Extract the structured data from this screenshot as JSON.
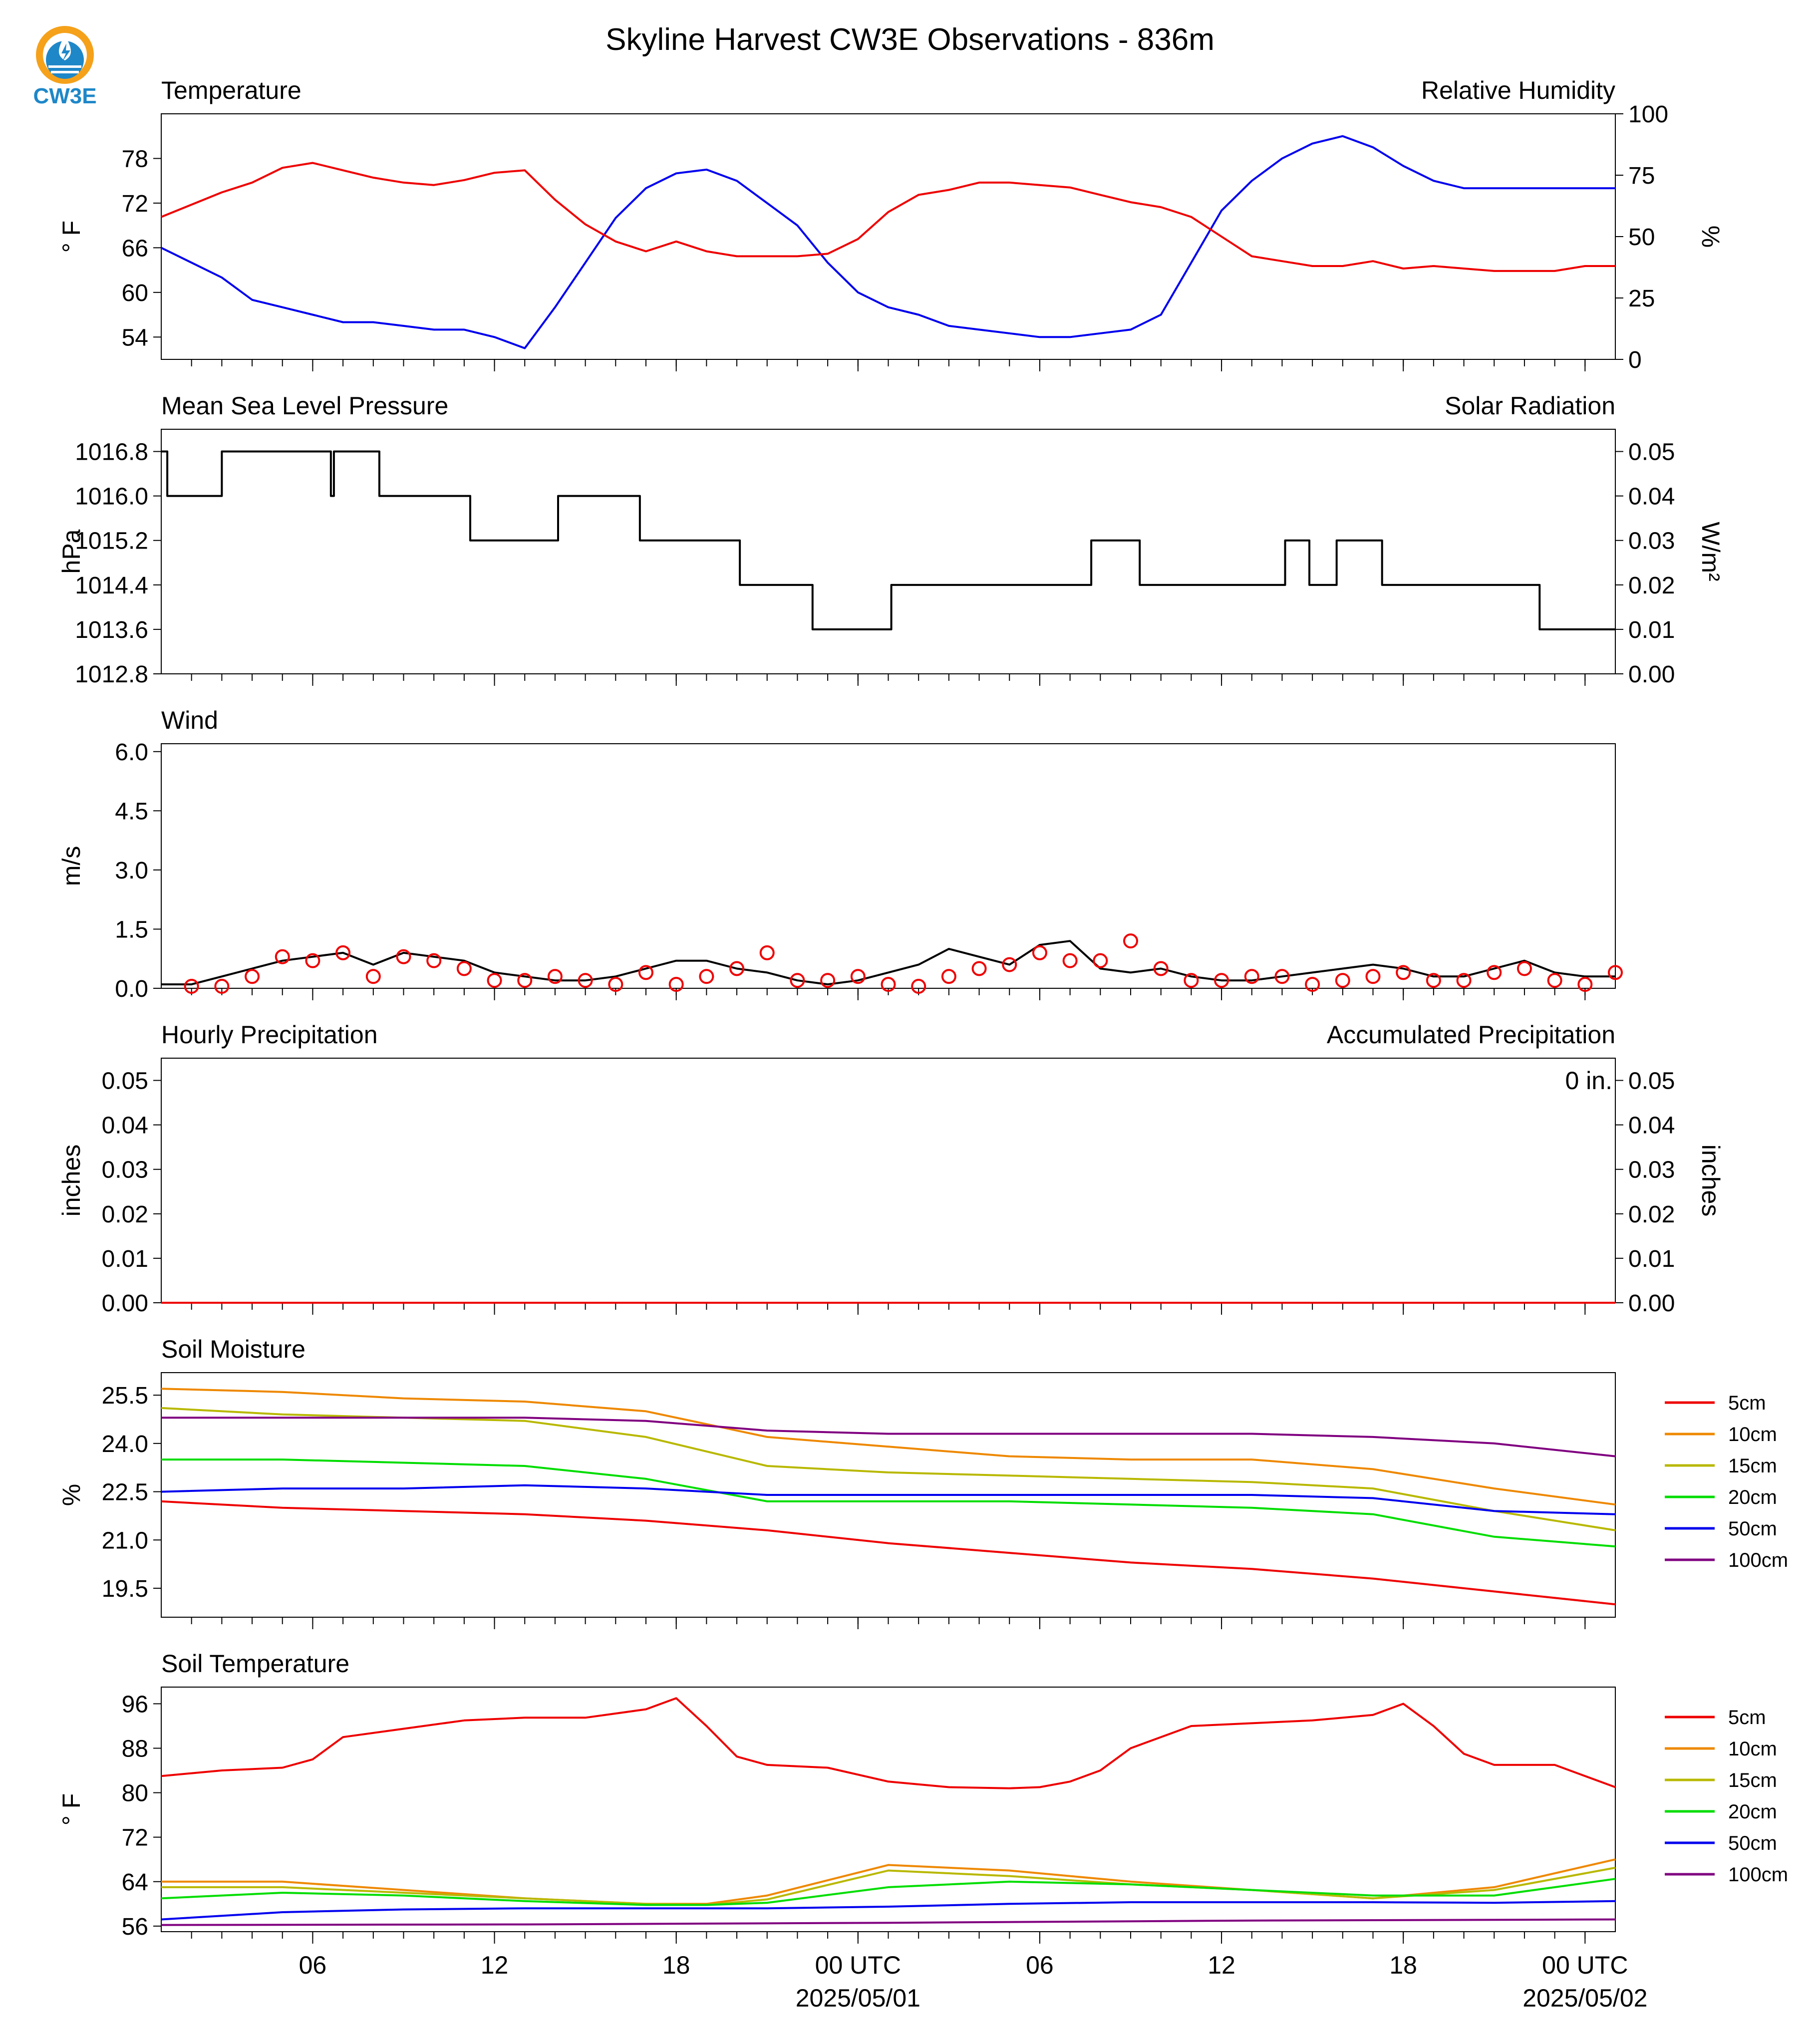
{
  "title": "Skyline Harvest CW3E Observations - 836m",
  "logo": {
    "text": "CW3E",
    "colors": {
      "ring": "#f5a11a",
      "drop": "#1e87c8",
      "text": "#1e87c8"
    }
  },
  "colors": {
    "blue": "#0000ee",
    "red": "#ee0000",
    "green": "#008800",
    "black": "#000000"
  },
  "x_axis": {
    "domain_hours": [
      0,
      48
    ],
    "ticks": [
      {
        "hour": 5,
        "label": "06",
        "sub": ""
      },
      {
        "hour": 11,
        "label": "12",
        "sub": ""
      },
      {
        "hour": 17,
        "label": "18",
        "sub": ""
      },
      {
        "hour": 23,
        "label": "00 UTC",
        "sub": "2025/05/01"
      },
      {
        "hour": 29,
        "label": "06",
        "sub": ""
      },
      {
        "hour": 35,
        "label": "12",
        "sub": ""
      },
      {
        "hour": 41,
        "label": "18",
        "sub": ""
      },
      {
        "hour": 47,
        "label": "00 UTC",
        "sub": "2025/05/02"
      }
    ]
  },
  "panels": {
    "temp_rh": {
      "left_title": "Temperature",
      "right_title": "Relative Humidity",
      "left_unit": "° F",
      "right_unit": "%",
      "left_ylim": [
        51,
        84
      ],
      "left_ticks": [
        "54",
        "60",
        "66",
        "72",
        "78"
      ],
      "right_ylim": [
        0,
        100
      ],
      "right_ticks": [
        "0",
        "25",
        "50",
        "75",
        "100"
      ]
    },
    "pressure": {
      "left_title": "Mean Sea Level Pressure",
      "right_title": "Solar Radiation",
      "left_unit": "hPa",
      "right_unit": "W/m²",
      "left_ylim": [
        1012.8,
        1017.2
      ],
      "left_ticks": [
        "1012.8",
        "1013.6",
        "1014.4",
        "1015.2",
        "1016.0",
        "1016.8"
      ],
      "right_ylim": [
        0,
        0.055
      ],
      "right_ticks": [
        "0.00",
        "0.01",
        "0.02",
        "0.03",
        "0.04",
        "0.05"
      ]
    },
    "wind": {
      "left_title": "Wind",
      "left_unit": "m/s",
      "left_ylim": [
        0,
        6.2
      ],
      "left_ticks": [
        "0.0",
        "1.5",
        "3.0",
        "4.5",
        "6.0"
      ]
    },
    "precip": {
      "left_title": "Hourly Precipitation",
      "right_title": "Accumulated Precipitation",
      "left_unit": "inches",
      "right_unit": "inches",
      "accum_label": "0 in.",
      "left_ylim": [
        0,
        0.055
      ],
      "left_ticks": [
        "0.00",
        "0.01",
        "0.02",
        "0.03",
        "0.04",
        "0.05"
      ],
      "right_ticks": [
        "0.00",
        "0.01",
        "0.02",
        "0.03",
        "0.04",
        "0.05"
      ]
    },
    "soil_moisture": {
      "left_title": "Soil Moisture",
      "left_unit": "%",
      "left_ylim": [
        18.6,
        26.2
      ],
      "left_ticks": [
        "19.5",
        "21.0",
        "22.5",
        "24.0",
        "25.5"
      ]
    },
    "soil_temp": {
      "left_title": "Soil Temperature",
      "left_unit": "° F",
      "left_ylim": [
        55,
        99
      ],
      "left_ticks": [
        "56",
        "64",
        "72",
        "80",
        "88",
        "96"
      ]
    }
  },
  "legend": [
    "5cm",
    "10cm",
    "15cm",
    "20cm",
    "50cm",
    "100cm"
  ],
  "chart_data": [
    {
      "type": "line",
      "title": "Temperature / Relative Humidity",
      "series": [
        {
          "name": "Temperature",
          "axis": "left",
          "color": "#0000ee",
          "x": [
            0,
            1,
            2,
            3,
            4,
            5,
            6,
            7,
            8,
            9,
            10,
            11,
            12,
            13,
            14,
            15,
            16,
            17,
            18,
            19,
            20,
            21,
            22,
            23,
            24,
            25,
            26,
            27,
            28,
            29,
            30,
            31,
            32,
            33,
            34,
            35,
            36,
            37,
            38,
            39,
            40,
            41,
            42,
            43,
            44,
            45,
            46,
            47,
            48
          ],
          "y": [
            66,
            64,
            62,
            59,
            58,
            57,
            56,
            56,
            55.5,
            55,
            55,
            54,
            52.5,
            58,
            64,
            70,
            74,
            76,
            76.5,
            75,
            72,
            69,
            64,
            60,
            58,
            57,
            55.5,
            55,
            54.5,
            54,
            54,
            54.5,
            55,
            57,
            64,
            71,
            75,
            78,
            80,
            81,
            79.5,
            77,
            75,
            74,
            74,
            74,
            74,
            74,
            74
          ]
        },
        {
          "name": "Relative Humidity",
          "axis": "right",
          "color": "#ee0000",
          "x": [
            0,
            1,
            2,
            3,
            4,
            5,
            6,
            7,
            8,
            9,
            10,
            11,
            12,
            13,
            14,
            15,
            16,
            17,
            18,
            19,
            20,
            21,
            22,
            23,
            24,
            25,
            26,
            27,
            28,
            29,
            30,
            31,
            32,
            33,
            34,
            35,
            36,
            37,
            38,
            39,
            40,
            41,
            42,
            43,
            44,
            45,
            46,
            47,
            48
          ],
          "y": [
            58,
            63,
            68,
            72,
            78,
            80,
            77,
            74,
            72,
            71,
            73,
            76,
            77,
            65,
            55,
            48,
            44,
            48,
            44,
            42,
            42,
            42,
            43,
            49,
            60,
            67,
            69,
            72,
            72,
            71,
            70,
            67,
            64,
            62,
            58,
            50,
            42,
            40,
            38,
            38,
            40,
            37,
            38,
            37,
            36,
            36,
            36,
            38,
            38
          ]
        }
      ]
    },
    {
      "type": "line",
      "title": "Mean Sea Level Pressure",
      "series": [
        {
          "name": "Mean Sea Level Pressure",
          "axis": "left",
          "color": "#000000",
          "x": [
            0,
            0.2,
            2,
            5.6,
            5.7,
            6,
            6.5,
            7.2,
            10.2,
            13.1,
            15.8,
            17.3,
            19.1,
            21.5,
            24.1,
            30.7,
            32.3,
            37.1,
            37.9,
            38.8,
            40.3,
            45.5,
            48
          ],
          "y": [
            1016.8,
            1016.0,
            1016.8,
            1016.0,
            1016.8,
            1016.8,
            1016.8,
            1016.0,
            1015.2,
            1016.0,
            1015.2,
            1015.2,
            1014.4,
            1013.6,
            1014.4,
            1015.2,
            1014.4,
            1015.2,
            1014.4,
            1015.2,
            1014.4,
            1013.6,
            1013.6
          ]
        }
      ]
    },
    {
      "type": "line",
      "title": "Wind",
      "series": [
        {
          "name": "Wind speed",
          "axis": "left",
          "color": "#000000",
          "x": [
            0,
            1,
            2,
            3,
            4,
            5,
            6,
            7,
            8,
            9,
            10,
            11,
            12,
            13,
            14,
            15,
            16,
            17,
            18,
            19,
            20,
            21,
            22,
            23,
            24,
            25,
            26,
            27,
            28,
            29,
            30,
            31,
            32,
            33,
            34,
            35,
            36,
            37,
            38,
            39,
            40,
            41,
            42,
            43,
            44,
            45,
            46,
            47,
            48
          ],
          "y": [
            0.1,
            0.1,
            0.3,
            0.5,
            0.7,
            0.8,
            0.9,
            0.6,
            0.9,
            0.8,
            0.7,
            0.4,
            0.3,
            0.2,
            0.2,
            0.3,
            0.5,
            0.7,
            0.7,
            0.5,
            0.4,
            0.2,
            0.1,
            0.2,
            0.4,
            0.6,
            1.0,
            0.8,
            0.6,
            1.1,
            1.2,
            0.5,
            0.4,
            0.5,
            0.3,
            0.2,
            0.2,
            0.3,
            0.4,
            0.5,
            0.6,
            0.5,
            0.3,
            0.3,
            0.5,
            0.7,
            0.4,
            0.3,
            0.3
          ]
        },
        {
          "name": "Gust markers",
          "axis": "left",
          "color": "#ee0000",
          "x": [
            1,
            2,
            3,
            4,
            5,
            6,
            7,
            8,
            9,
            10,
            11,
            12,
            13,
            14,
            15,
            16,
            17,
            18,
            19,
            20,
            21,
            22,
            23,
            24,
            25,
            26,
            27,
            28,
            29,
            30,
            31,
            32,
            33,
            34,
            35,
            36,
            37,
            38,
            39,
            40,
            41,
            42,
            43,
            44,
            45,
            46,
            47,
            48
          ],
          "y": [
            0.05,
            0.05,
            0.3,
            0.8,
            0.7,
            0.9,
            0.3,
            0.8,
            0.7,
            0.5,
            0.2,
            0.2,
            0.3,
            0.2,
            0.1,
            0.4,
            0.1,
            0.3,
            0.5,
            0.9,
            0.2,
            0.2,
            0.3,
            0.1,
            0.05,
            0.3,
            0.5,
            0.6,
            0.9,
            0.7,
            0.7,
            1.2,
            0.5,
            0.2,
            0.2,
            0.3,
            0.3,
            0.1,
            0.2,
            0.3,
            0.4,
            0.2,
            0.2,
            0.4,
            0.5,
            0.2,
            0.1,
            0.4
          ]
        }
      ]
    },
    {
      "type": "line",
      "title": "Precipitation",
      "series": [
        {
          "name": "Hourly Precipitation",
          "axis": "left",
          "color": "#0000ee",
          "x": [
            0,
            48
          ],
          "y": [
            0,
            0
          ]
        },
        {
          "name": "Accumulated Precipitation",
          "axis": "right",
          "color": "#ee0000",
          "x": [
            0,
            48
          ],
          "y": [
            0,
            0
          ]
        }
      ]
    },
    {
      "type": "line",
      "title": "Soil Moisture",
      "series": [
        {
          "name": "5cm",
          "color": "#ee0000",
          "x": [
            0,
            4,
            8,
            12,
            16,
            20,
            24,
            28,
            32,
            36,
            40,
            44,
            48
          ],
          "y": [
            22.2,
            22.0,
            21.9,
            21.8,
            21.6,
            21.3,
            20.9,
            20.6,
            20.3,
            20.1,
            19.8,
            19.4,
            19.0
          ]
        },
        {
          "name": "10cm",
          "color": "#ee8800",
          "x": [
            0,
            4,
            8,
            12,
            16,
            20,
            24,
            28,
            32,
            36,
            40,
            44,
            48
          ],
          "y": [
            25.7,
            25.6,
            25.4,
            25.3,
            25.0,
            24.2,
            23.9,
            23.6,
            23.5,
            23.5,
            23.2,
            22.6,
            22.1
          ]
        },
        {
          "name": "15cm",
          "color": "#b8b800",
          "x": [
            0,
            4,
            8,
            12,
            16,
            20,
            24,
            28,
            32,
            36,
            40,
            44,
            48
          ],
          "y": [
            25.1,
            24.9,
            24.8,
            24.7,
            24.2,
            23.3,
            23.1,
            23.0,
            22.9,
            22.8,
            22.6,
            21.9,
            21.3
          ]
        },
        {
          "name": "20cm",
          "color": "#00dd00",
          "x": [
            0,
            4,
            8,
            12,
            16,
            20,
            24,
            28,
            32,
            36,
            40,
            44,
            48
          ],
          "y": [
            23.5,
            23.5,
            23.4,
            23.3,
            22.9,
            22.2,
            22.2,
            22.2,
            22.1,
            22.0,
            21.8,
            21.1,
            20.8
          ]
        },
        {
          "name": "50cm",
          "color": "#0000ee",
          "x": [
            0,
            4,
            8,
            12,
            16,
            20,
            24,
            28,
            32,
            36,
            40,
            44,
            48
          ],
          "y": [
            22.5,
            22.6,
            22.6,
            22.7,
            22.6,
            22.4,
            22.4,
            22.4,
            22.4,
            22.4,
            22.3,
            21.9,
            21.8
          ]
        },
        {
          "name": "100cm",
          "color": "#800080",
          "x": [
            0,
            4,
            8,
            12,
            16,
            20,
            24,
            28,
            32,
            36,
            40,
            44,
            48
          ],
          "y": [
            24.8,
            24.8,
            24.8,
            24.8,
            24.7,
            24.4,
            24.3,
            24.3,
            24.3,
            24.3,
            24.2,
            24.0,
            23.6
          ]
        }
      ]
    },
    {
      "type": "line",
      "title": "Soil Temperature",
      "series": [
        {
          "name": "5cm",
          "color": "#ee0000",
          "x": [
            0,
            2,
            4,
            5,
            6,
            8,
            10,
            12,
            14,
            16,
            17,
            18,
            19,
            20,
            22,
            24,
            26,
            28,
            29,
            30,
            31,
            32,
            34,
            36,
            38,
            40,
            41,
            42,
            43,
            44,
            46,
            48
          ],
          "y": [
            83,
            84,
            84.5,
            86,
            90,
            91.5,
            93,
            93.5,
            93.5,
            95,
            97,
            92,
            86.5,
            85,
            84.5,
            82,
            81,
            80.8,
            81,
            82,
            84,
            88,
            92,
            92.5,
            93,
            94,
            96,
            92,
            87,
            85,
            85,
            81
          ]
        },
        {
          "name": "10cm",
          "color": "#ee8800",
          "x": [
            0,
            4,
            8,
            12,
            16,
            18,
            20,
            24,
            28,
            32,
            36,
            40,
            44,
            48
          ],
          "y": [
            64,
            64,
            62.5,
            61,
            60,
            60,
            61.5,
            67,
            66,
            64,
            62.5,
            61,
            63,
            68
          ]
        },
        {
          "name": "15cm",
          "color": "#b8b800",
          "x": [
            0,
            4,
            8,
            12,
            16,
            18,
            20,
            24,
            28,
            32,
            36,
            40,
            44,
            48
          ],
          "y": [
            63,
            63,
            62,
            61,
            60,
            59.8,
            60.8,
            66,
            65,
            63.5,
            62.5,
            61,
            62.5,
            66.5
          ]
        },
        {
          "name": "20cm",
          "color": "#00dd00",
          "x": [
            0,
            4,
            8,
            12,
            16,
            18,
            20,
            24,
            28,
            32,
            36,
            40,
            44,
            48
          ],
          "y": [
            61,
            62,
            61.5,
            60.5,
            59.8,
            59.8,
            60.2,
            63,
            64,
            63.5,
            62.5,
            61.5,
            61.5,
            64.5
          ]
        },
        {
          "name": "50cm",
          "color": "#0000ee",
          "x": [
            0,
            4,
            8,
            12,
            16,
            20,
            24,
            28,
            32,
            36,
            40,
            44,
            48
          ],
          "y": [
            57.2,
            58.5,
            59,
            59.2,
            59.2,
            59.2,
            59.5,
            60,
            60.3,
            60.3,
            60.3,
            60.2,
            60.5
          ]
        },
        {
          "name": "100cm",
          "color": "#800080",
          "x": [
            0,
            12,
            24,
            36,
            48
          ],
          "y": [
            56.2,
            56.3,
            56.6,
            57,
            57.2
          ]
        }
      ]
    }
  ]
}
